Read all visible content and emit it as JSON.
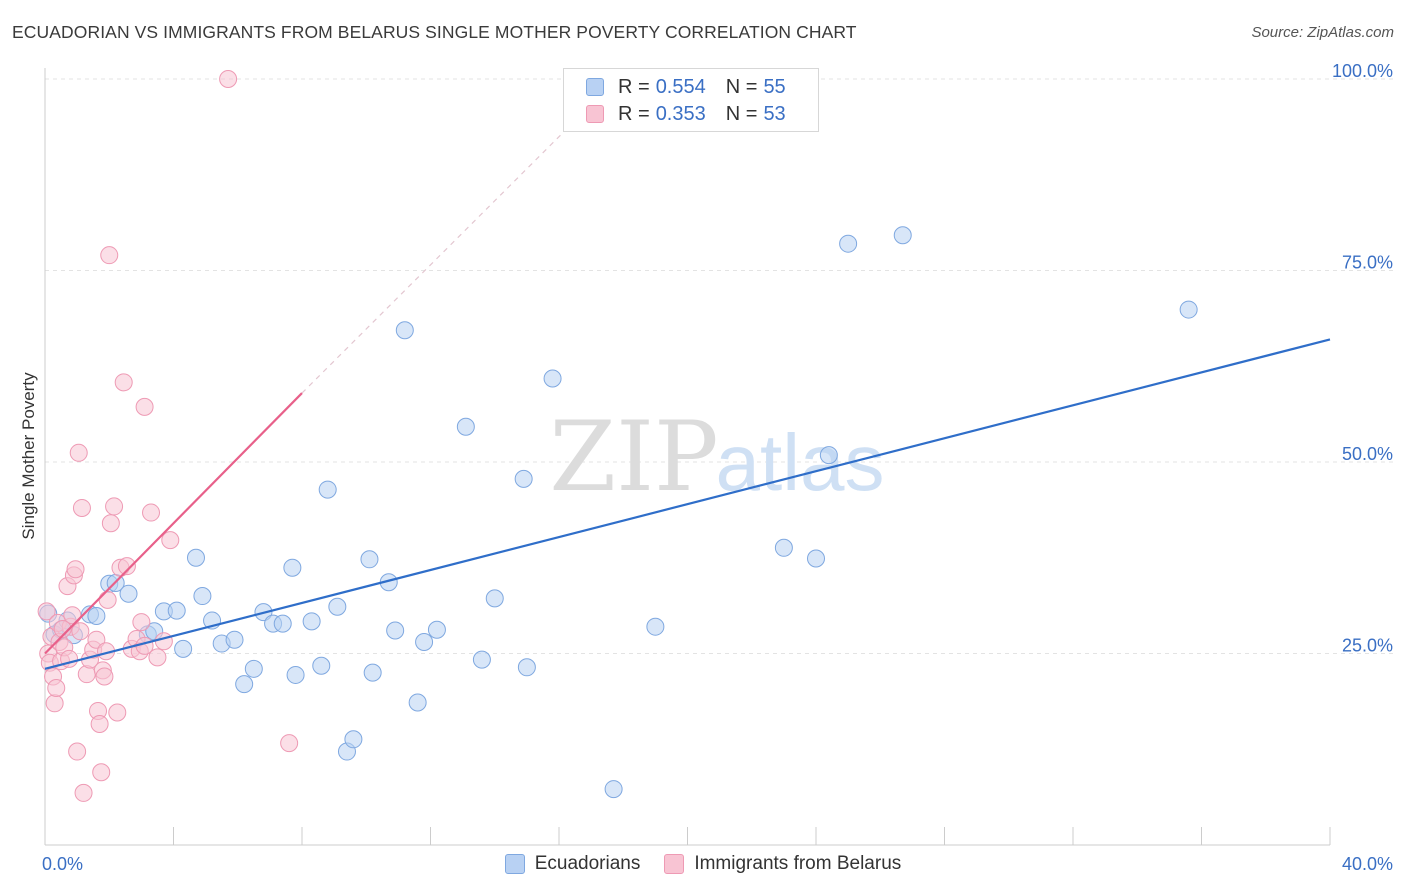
{
  "title": "ECUADORIAN VS IMMIGRANTS FROM BELARUS SINGLE MOTHER POVERTY CORRELATION CHART",
  "source": "Source: ZipAtlas.com",
  "watermark": {
    "zip": "ZIP",
    "atlas": "atlas"
  },
  "legend": {
    "r_label": "R =",
    "n_label": "N =",
    "rows": [
      {
        "r": "0.554",
        "n": "55",
        "fill": "#b8d1f3",
        "stroke": "#7fa8e0"
      },
      {
        "r": "0.353",
        "n": "53",
        "fill": "#f8c4d3",
        "stroke": "#ee9ab4"
      }
    ]
  },
  "bottom_legend": [
    {
      "label": "Ecuadorians",
      "fill": "#b8d1f3",
      "stroke": "#7fa8e0"
    },
    {
      "label": "Immigrants from Belarus",
      "fill": "#f8c4d3",
      "stroke": "#ee9ab4"
    }
  ],
  "chart_data": {
    "type": "scatter",
    "title": "ECUADORIAN VS IMMIGRANTS FROM BELARUS SINGLE MOTHER POVERTY CORRELATION CHART",
    "xlabel": "",
    "ylabel": "Single Mother Poverty",
    "xlim": [
      0,
      40
    ],
    "ylim": [
      0,
      100
    ],
    "x_tick_labels": [
      {
        "value": 0,
        "label": "0.0%"
      },
      {
        "value": 40,
        "label": "40.0%"
      }
    ],
    "y_tick_labels": [
      {
        "value": 25,
        "label": "25.0%"
      },
      {
        "value": 50,
        "label": "50.0%"
      },
      {
        "value": 75,
        "label": "75.0%"
      },
      {
        "value": 100,
        "label": "100.0%"
      }
    ],
    "grid": true,
    "colors": {
      "blue": "#3a6fc4",
      "blue_line": "#2f6ec9",
      "pink": "#e8608a",
      "grid": "#e3e3e3",
      "axis_text": "#3a6fc4"
    },
    "series": [
      {
        "name": "Ecuadorians",
        "color": "#7fa8e0",
        "fill": "#b8d1f3",
        "points": [
          [
            0.1,
            30.2
          ],
          [
            0.3,
            27.5
          ],
          [
            0.5,
            28.1
          ],
          [
            0.7,
            29.3
          ],
          [
            0.9,
            27.4
          ],
          [
            1.4,
            30.1
          ],
          [
            1.6,
            29.9
          ],
          [
            2.0,
            34.1
          ],
          [
            2.2,
            34.2
          ],
          [
            2.6,
            32.8
          ],
          [
            3.2,
            27.5
          ],
          [
            3.4,
            27.9
          ],
          [
            3.7,
            30.5
          ],
          [
            4.1,
            30.6
          ],
          [
            4.3,
            25.6
          ],
          [
            4.7,
            37.5
          ],
          [
            4.9,
            32.5
          ],
          [
            5.2,
            29.3
          ],
          [
            5.5,
            26.3
          ],
          [
            5.9,
            26.8
          ],
          [
            6.2,
            21.0
          ],
          [
            6.5,
            23.0
          ],
          [
            6.8,
            30.4
          ],
          [
            7.1,
            28.9
          ],
          [
            7.4,
            28.9
          ],
          [
            7.7,
            36.2
          ],
          [
            7.8,
            22.2
          ],
          [
            8.3,
            29.2
          ],
          [
            8.6,
            23.4
          ],
          [
            8.8,
            46.4
          ],
          [
            9.1,
            31.1
          ],
          [
            9.4,
            12.2
          ],
          [
            9.6,
            13.8
          ],
          [
            10.1,
            37.3
          ],
          [
            10.2,
            22.5
          ],
          [
            10.7,
            34.3
          ],
          [
            10.9,
            28.0
          ],
          [
            11.2,
            67.2
          ],
          [
            11.6,
            18.6
          ],
          [
            11.8,
            26.5
          ],
          [
            12.2,
            28.1
          ],
          [
            13.1,
            54.6
          ],
          [
            13.6,
            24.2
          ],
          [
            14.0,
            32.2
          ],
          [
            14.9,
            47.8
          ],
          [
            15.0,
            23.2
          ],
          [
            15.8,
            60.9
          ],
          [
            17.7,
            7.3
          ],
          [
            19.0,
            28.5
          ],
          [
            23.0,
            38.8
          ],
          [
            24.0,
            37.4
          ],
          [
            24.4,
            50.9
          ],
          [
            25.0,
            78.5
          ],
          [
            26.7,
            79.6
          ],
          [
            35.6,
            69.9
          ]
        ]
      },
      {
        "name": "Immigrants from Belarus",
        "color": "#ee9ab4",
        "fill": "#f8c4d3",
        "points": [
          [
            0.05,
            30.5
          ],
          [
            0.1,
            25.0
          ],
          [
            0.15,
            23.8
          ],
          [
            0.2,
            27.2
          ],
          [
            0.25,
            22.0
          ],
          [
            0.3,
            18.5
          ],
          [
            0.35,
            20.5
          ],
          [
            0.4,
            29.0
          ],
          [
            0.45,
            26.5
          ],
          [
            0.5,
            24.0
          ],
          [
            0.6,
            25.8
          ],
          [
            0.7,
            33.8
          ],
          [
            0.75,
            24.3
          ],
          [
            0.8,
            28.5
          ],
          [
            0.85,
            30.0
          ],
          [
            0.9,
            35.2
          ],
          [
            0.95,
            36.0
          ],
          [
            1.0,
            12.2
          ],
          [
            1.05,
            51.2
          ],
          [
            1.1,
            27.9
          ],
          [
            1.15,
            44.0
          ],
          [
            1.2,
            6.8
          ],
          [
            1.3,
            22.3
          ],
          [
            1.4,
            24.2
          ],
          [
            1.5,
            25.5
          ],
          [
            1.6,
            26.8
          ],
          [
            1.65,
            17.5
          ],
          [
            1.7,
            15.8
          ],
          [
            1.75,
            9.5
          ],
          [
            1.8,
            22.8
          ],
          [
            1.85,
            22.0
          ],
          [
            1.9,
            25.3
          ],
          [
            1.95,
            32.0
          ],
          [
            2.0,
            77.0
          ],
          [
            2.05,
            42.0
          ],
          [
            2.15,
            44.2
          ],
          [
            2.25,
            17.3
          ],
          [
            2.35,
            36.2
          ],
          [
            2.45,
            60.4
          ],
          [
            2.55,
            36.4
          ],
          [
            2.7,
            25.6
          ],
          [
            2.85,
            26.9
          ],
          [
            2.95,
            25.3
          ],
          [
            3.1,
            57.2
          ],
          [
            3.3,
            43.4
          ],
          [
            3.1,
            26.0
          ],
          [
            3.0,
            29.1
          ],
          [
            3.5,
            24.5
          ],
          [
            3.7,
            26.6
          ],
          [
            3.9,
            39.8
          ],
          [
            5.7,
            100.0
          ],
          [
            7.6,
            13.3
          ],
          [
            0.55,
            28.2
          ]
        ]
      }
    ],
    "trendlines": [
      {
        "series": "Ecuadorians",
        "x": [
          0,
          40
        ],
        "y": [
          23.0,
          66.0
        ],
        "style": "solid"
      },
      {
        "series": "Immigrants from Belarus",
        "x": [
          0,
          8.0
        ],
        "y": [
          25.0,
          59.0
        ],
        "style": "solid"
      },
      {
        "series": "Immigrants from Belarus",
        "x": [
          8.0,
          17.8
        ],
        "y": [
          59.0,
          100.0
        ],
        "style": "dashed"
      }
    ]
  }
}
